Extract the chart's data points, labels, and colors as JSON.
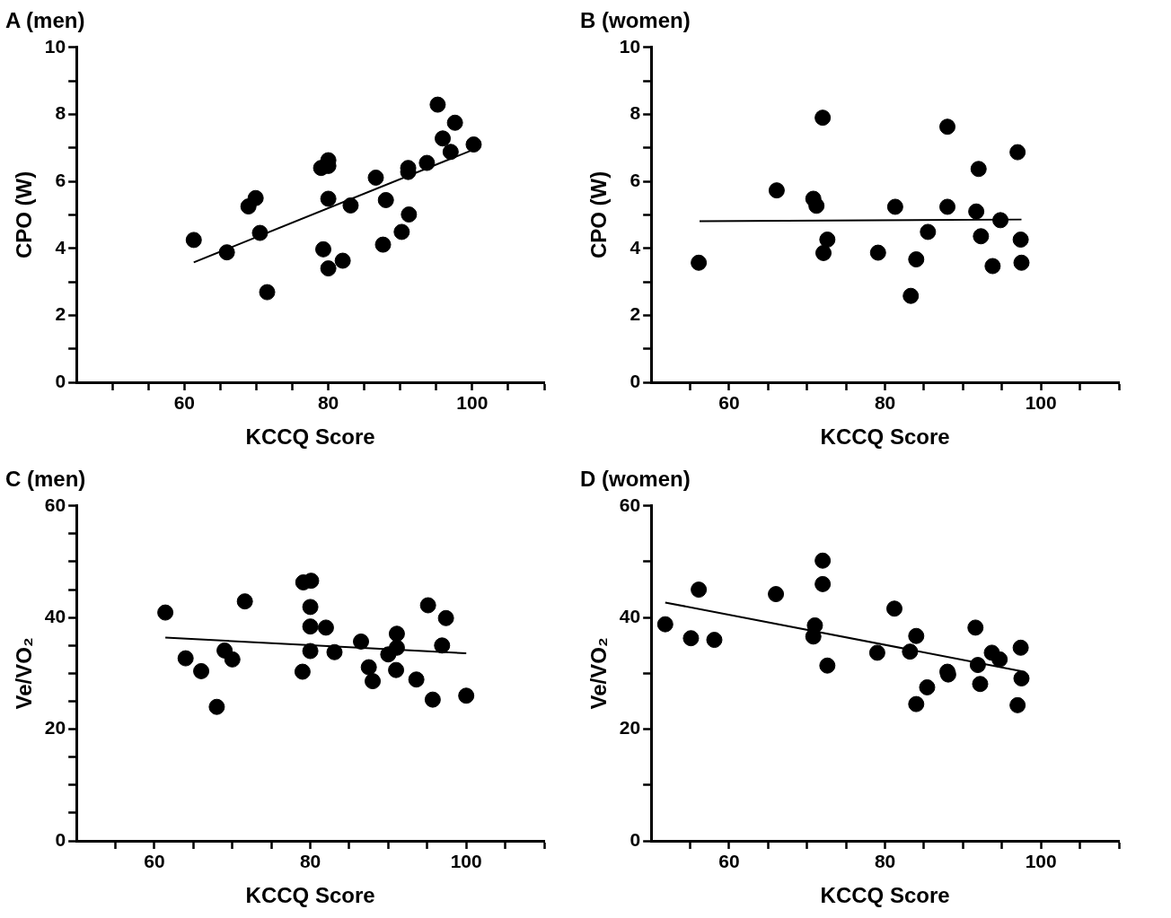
{
  "chart_data": [
    {
      "type": "scatter",
      "title": "A (men)",
      "xlabel": "KCCQ Score",
      "ylabel": "CPO (W)",
      "marker": "circle",
      "xlim": [
        45,
        110
      ],
      "ylim": [
        0,
        10
      ],
      "xticks": [
        {
          "value": 50,
          "label": null
        },
        {
          "value": 55,
          "label": null
        },
        60,
        {
          "value": 65,
          "label": null
        },
        {
          "value": 70,
          "label": null
        },
        {
          "value": 75,
          "label": null
        },
        80,
        {
          "value": 85,
          "label": null
        },
        {
          "value": 90,
          "label": null
        },
        {
          "value": 95,
          "label": null
        },
        100,
        {
          "value": 105,
          "label": null
        },
        {
          "value": 110,
          "label": null
        }
      ],
      "yticks": [
        0,
        {
          "value": 1,
          "label": null
        },
        2,
        {
          "value": 3,
          "label": null
        },
        4,
        {
          "value": 5,
          "label": null
        },
        6,
        {
          "value": 7,
          "label": null
        },
        8,
        {
          "value": 9,
          "label": null
        },
        10
      ],
      "series": [
        {
          "type": "scatter",
          "color": "#000000",
          "x": [
            61.3,
            65.9,
            68.9,
            69.9,
            70.5,
            71.5,
            79.0,
            80.0,
            80.0,
            80.0,
            79.3,
            80.0,
            82.0,
            83.1,
            86.6,
            88.0,
            87.6,
            90.2,
            91.2,
            91.1,
            91.1,
            93.7,
            95.2,
            95.9,
            97.0,
            97.6,
            100.2
          ],
          "values": [
            4.25,
            3.88,
            5.25,
            5.5,
            4.46,
            2.69,
            6.4,
            6.63,
            6.46,
            5.48,
            3.97,
            3.4,
            3.63,
            5.28,
            6.11,
            5.44,
            4.11,
            4.49,
            5.01,
            6.4,
            6.28,
            6.55,
            8.29,
            7.28,
            6.88,
            7.75,
            7.1
          ]
        },
        {
          "type": "line",
          "color": "#000000",
          "line_style": "solid",
          "marker": "none",
          "x": [
            61.3,
            100.2
          ],
          "values": [
            3.58,
            6.95
          ]
        }
      ]
    },
    {
      "type": "scatter",
      "title": "B (women)",
      "xlabel": "KCCQ Score",
      "ylabel": "CPO (W)",
      "marker": "circle",
      "xlim": [
        50,
        110
      ],
      "ylim": [
        0,
        10
      ],
      "xticks": [
        {
          "value": 55,
          "label": null
        },
        60,
        {
          "value": 65,
          "label": null
        },
        {
          "value": 70,
          "label": null
        },
        {
          "value": 75,
          "label": null
        },
        80,
        {
          "value": 85,
          "label": null
        },
        {
          "value": 90,
          "label": null
        },
        {
          "value": 95,
          "label": null
        },
        100,
        {
          "value": 105,
          "label": null
        },
        {
          "value": 110,
          "label": null
        }
      ],
      "yticks": [
        0,
        {
          "value": 1,
          "label": null
        },
        2,
        {
          "value": 3,
          "label": null
        },
        4,
        {
          "value": 5,
          "label": null
        },
        6,
        {
          "value": 7,
          "label": null
        },
        8,
        {
          "value": 9,
          "label": null
        },
        10
      ],
      "series": [
        {
          "type": "scatter",
          "color": "#000000",
          "x": [
            56.1,
            66.1,
            72.0,
            70.8,
            71.2,
            72.6,
            72.1,
            79.1,
            81.3,
            83.3,
            84.0,
            85.5,
            88.0,
            88.0,
            91.7,
            92.0,
            92.3,
            93.8,
            94.8,
            97.0,
            97.4,
            97.5
          ],
          "values": [
            3.57,
            5.73,
            7.9,
            5.48,
            5.27,
            4.26,
            3.86,
            3.87,
            5.24,
            2.58,
            3.67,
            4.49,
            7.63,
            5.24,
            5.1,
            6.37,
            4.36,
            3.47,
            4.84,
            6.87,
            4.26,
            3.57
          ]
        },
        {
          "type": "line",
          "color": "#000000",
          "line_style": "solid",
          "marker": "none",
          "x": [
            56.2,
            97.5
          ],
          "values": [
            4.81,
            4.86
          ]
        }
      ]
    },
    {
      "type": "scatter",
      "title": "C (men)",
      "xlabel": "KCCQ Score",
      "ylabel": "Ve/VO₂",
      "marker": "circle",
      "xlim": [
        50,
        110
      ],
      "ylim": [
        0,
        60
      ],
      "xticks": [
        {
          "value": 55,
          "label": null
        },
        60,
        {
          "value": 65,
          "label": null
        },
        {
          "value": 70,
          "label": null
        },
        {
          "value": 75,
          "label": null
        },
        80,
        {
          "value": 85,
          "label": null
        },
        {
          "value": 90,
          "label": null
        },
        {
          "value": 95,
          "label": null
        },
        100,
        {
          "value": 105,
          "label": null
        },
        {
          "value": 110,
          "label": null
        }
      ],
      "yticks": [
        0,
        {
          "value": 5,
          "label": null
        },
        {
          "value": 10,
          "label": null
        },
        {
          "value": 15,
          "label": null
        },
        20,
        {
          "value": 25,
          "label": null
        },
        {
          "value": 30,
          "label": null
        },
        {
          "value": 35,
          "label": null
        },
        40,
        {
          "value": 45,
          "label": null
        },
        {
          "value": 50,
          "label": null
        },
        {
          "value": 55,
          "label": null
        },
        60
      ],
      "series": [
        {
          "type": "scatter",
          "color": "#000000",
          "x": [
            61.4,
            64.0,
            66.0,
            68.0,
            69.0,
            70.0,
            71.6,
            79.1,
            80.1,
            80.0,
            80.0,
            80.0,
            79.0,
            82.0,
            83.1,
            86.5,
            87.5,
            88.0,
            90.0,
            91.1,
            91.1,
            91.0,
            93.6,
            95.1,
            95.7,
            96.9,
            97.4,
            100.0
          ],
          "values": [
            40.9,
            32.7,
            30.4,
            24.0,
            34.1,
            32.5,
            42.9,
            46.3,
            46.6,
            41.9,
            38.4,
            34.0,
            30.3,
            38.2,
            33.8,
            35.7,
            31.1,
            28.6,
            33.4,
            37.1,
            34.6,
            30.6,
            28.9,
            42.2,
            25.3,
            35.0,
            39.9,
            26.0
          ]
        },
        {
          "type": "line",
          "color": "#000000",
          "line_style": "solid",
          "marker": "none",
          "x": [
            61.4,
            100.0
          ],
          "values": [
            36.4,
            33.6
          ]
        }
      ]
    },
    {
      "type": "scatter",
      "title": "D (women)",
      "xlabel": "KCCQ Score",
      "ylabel": "Ve/VO₂",
      "marker": "circle",
      "xlim": [
        50,
        110
      ],
      "ylim": [
        0,
        60
      ],
      "xticks": [
        {
          "value": 55,
          "label": null
        },
        60,
        {
          "value": 65,
          "label": null
        },
        {
          "value": 70,
          "label": null
        },
        {
          "value": 75,
          "label": null
        },
        80,
        {
          "value": 85,
          "label": null
        },
        {
          "value": 90,
          "label": null
        },
        {
          "value": 95,
          "label": null
        },
        100,
        {
          "value": 105,
          "label": null
        },
        {
          "value": 110,
          "label": null
        }
      ],
      "yticks": [
        0,
        {
          "value": 10,
          "label": null
        },
        20,
        {
          "value": 30,
          "label": null
        },
        40,
        {
          "value": 50,
          "label": null
        },
        60
      ],
      "series": [
        {
          "type": "scatter",
          "color": "#000000",
          "x": [
            51.8,
            55.1,
            56.1,
            58.1,
            66.0,
            71.0,
            70.8,
            72.0,
            72.0,
            72.6,
            79.0,
            81.2,
            83.2,
            84.0,
            84.0,
            85.4,
            88.0,
            88.1,
            91.6,
            91.9,
            92.2,
            93.7,
            94.7,
            97.4,
            97.5,
            97.0
          ],
          "values": [
            38.8,
            36.3,
            45.0,
            36.0,
            44.2,
            38.6,
            36.6,
            50.2,
            46.0,
            31.4,
            33.7,
            41.6,
            33.9,
            36.7,
            24.5,
            27.5,
            30.3,
            29.8,
            38.2,
            31.5,
            28.1,
            33.7,
            32.5,
            34.6,
            29.1,
            24.3
          ]
        },
        {
          "type": "line",
          "color": "#000000",
          "line_style": "solid",
          "marker": "none",
          "x": [
            51.8,
            97.5
          ],
          "values": [
            42.7,
            30.4
          ]
        }
      ]
    }
  ]
}
